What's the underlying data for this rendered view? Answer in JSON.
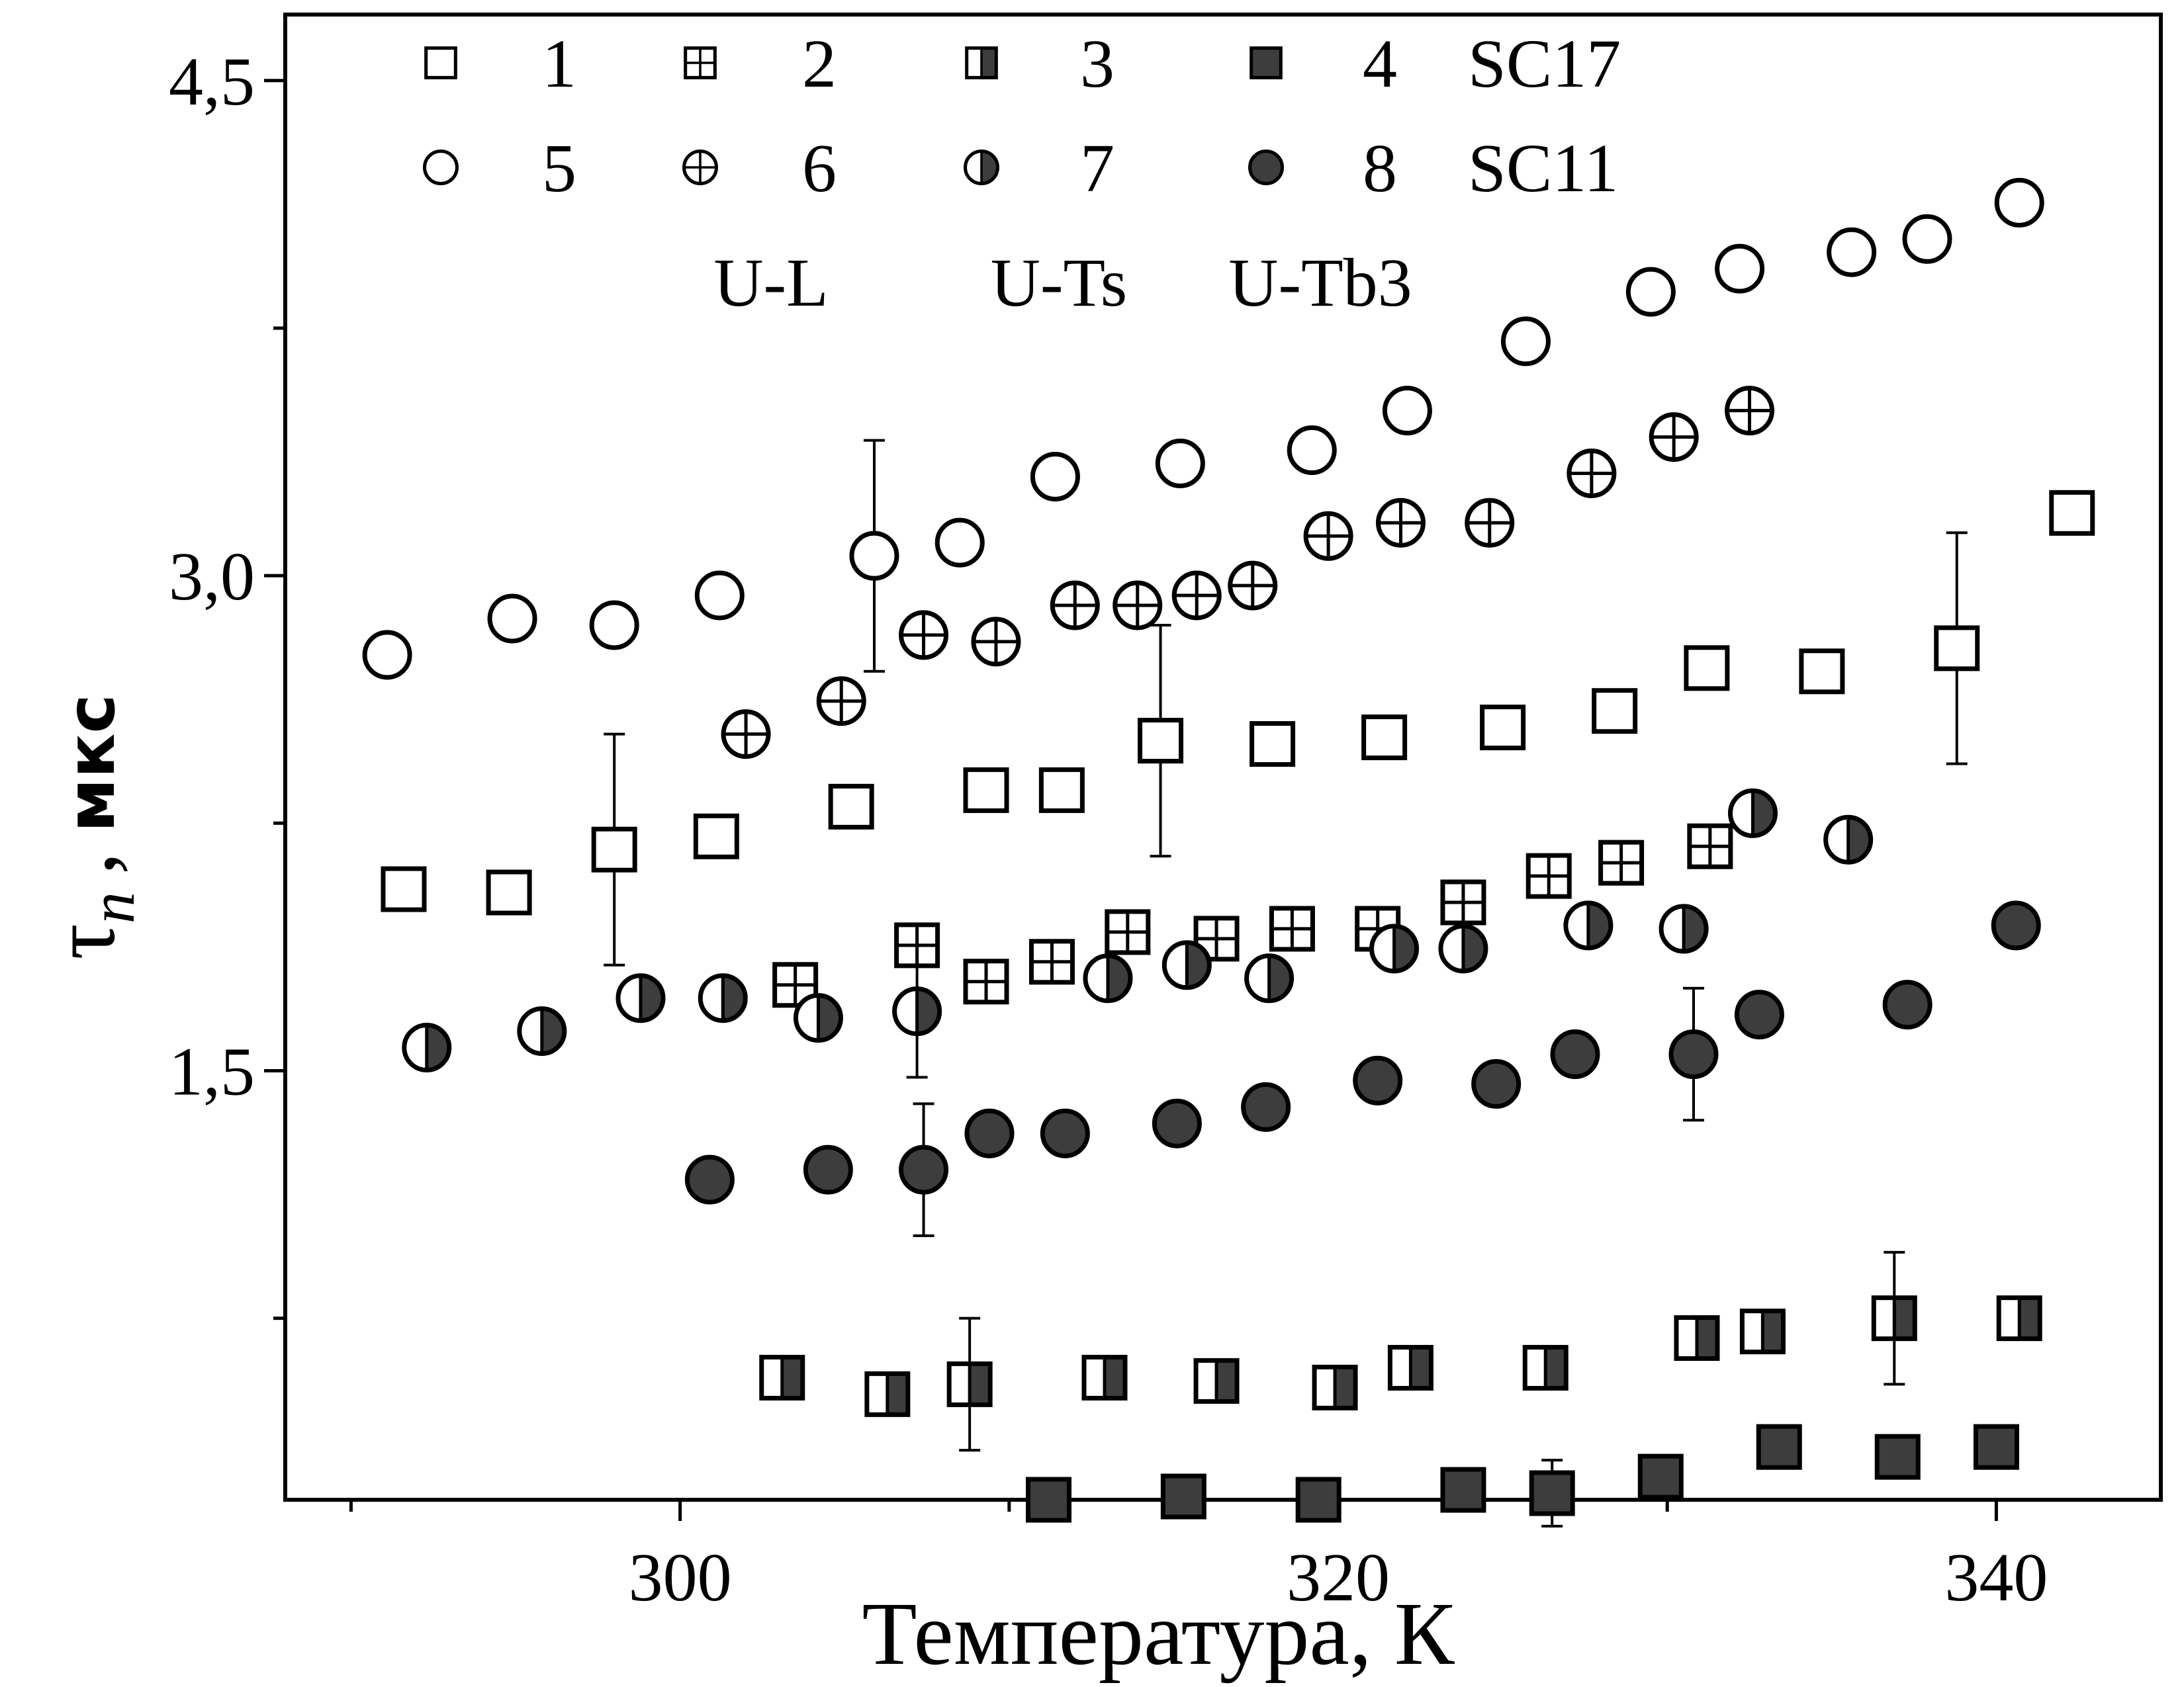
{
  "chart_data": {
    "type": "scatter",
    "xlabel": "Температура,  К",
    "ylabel": "мкс",
    "ylabel_symbol": "τ",
    "ylabel_subscript": "n",
    "ylabel_comma": ",",
    "xlim": [
      288,
      345
    ],
    "ylim": [
      0.2,
      4.7
    ],
    "xticks": [
      300,
      320,
      340
    ],
    "xtick_labels": [
      "300",
      "320",
      "340"
    ],
    "xminor": [
      290,
      310,
      330
    ],
    "yticks": [
      1.5,
      3.0,
      4.5
    ],
    "ytick_labels": [
      "1,5",
      "3,0",
      "4,5"
    ],
    "yminor": [
      0.75,
      2.25,
      3.75
    ],
    "grid": false,
    "legend": {
      "position": "top",
      "entries": [
        {
          "label": "1",
          "series": 0
        },
        {
          "label": "2",
          "series": 1
        },
        {
          "label": "3",
          "series": 2
        },
        {
          "label": "4",
          "series": 3
        },
        {
          "label": "5",
          "series": 4
        },
        {
          "label": "6",
          "series": 5
        },
        {
          "label": "7",
          "series": 6
        },
        {
          "label": "8",
          "series": 7
        }
      ],
      "row_tags": [
        "SC17",
        "SC11"
      ],
      "group_labels": [
        "U-L",
        "U-Ts",
        "U-Tb3"
      ]
    },
    "series": [
      {
        "name": "1",
        "marker": "square",
        "fill": "open",
        "x": [
          291.6,
          294.8,
          298.0,
          301.1,
          305.2,
          309.3,
          311.6,
          314.6,
          318.0,
          321.4,
          325.0,
          328.4,
          331.2,
          334.7,
          338.8,
          342.3
        ],
        "y": [
          2.05,
          2.04,
          2.17,
          2.21,
          2.3,
          2.35,
          2.35,
          2.5,
          2.49,
          2.51,
          2.54,
          2.59,
          2.72,
          2.71,
          2.78,
          3.19
        ],
        "yerr": [
          null,
          null,
          0.35,
          null,
          null,
          null,
          null,
          0.35,
          null,
          null,
          null,
          null,
          null,
          null,
          0.35,
          null
        ]
      },
      {
        "name": "2",
        "marker": "square",
        "fill": "cross",
        "x": [
          303.5,
          307.2,
          309.3,
          311.3,
          313.6,
          316.3,
          318.6,
          321.2,
          323.8,
          326.4,
          328.6,
          331.3
        ],
        "y": [
          1.76,
          1.88,
          1.77,
          1.83,
          1.92,
          1.9,
          1.93,
          1.93,
          2.01,
          2.09,
          2.13,
          2.18
        ],
        "yerr": [
          null,
          null,
          null,
          null,
          null,
          null,
          null,
          null,
          null,
          null,
          null,
          null
        ]
      },
      {
        "name": "3",
        "marker": "square",
        "fill": "right-half",
        "x": [
          303.1,
          306.3,
          308.8,
          312.9,
          316.3,
          319.9,
          322.2,
          326.3,
          330.9,
          332.9,
          336.9,
          340.7
        ],
        "y": [
          0.57,
          0.52,
          0.55,
          0.57,
          0.56,
          0.54,
          0.6,
          0.6,
          0.69,
          0.71,
          0.75,
          0.75
        ],
        "yerr": [
          null,
          null,
          0.2,
          null,
          null,
          null,
          null,
          null,
          null,
          null,
          0.2,
          null
        ]
      },
      {
        "name": "4",
        "marker": "square",
        "fill": "filled",
        "x": [
          311.2,
          315.3,
          319.4,
          323.8,
          326.5,
          329.8,
          333.4,
          337.0,
          340.0
        ],
        "y": [
          0.2,
          0.21,
          0.2,
          0.23,
          0.22,
          0.27,
          0.36,
          0.33,
          0.36
        ],
        "yerr": [
          null,
          null,
          null,
          null,
          0.1,
          null,
          null,
          null,
          null
        ]
      },
      {
        "name": "5",
        "marker": "circle",
        "fill": "open",
        "x": [
          291.1,
          294.9,
          298.0,
          301.2,
          305.9,
          308.5,
          311.4,
          315.2,
          319.2,
          322.1,
          325.7,
          329.5,
          332.2,
          335.6,
          337.9,
          340.7
        ],
        "y": [
          2.76,
          2.87,
          2.85,
          2.94,
          3.06,
          3.1,
          3.3,
          3.34,
          3.38,
          3.5,
          3.71,
          3.86,
          3.93,
          3.98,
          4.02,
          4.13
        ],
        "yerr": [
          null,
          null,
          null,
          null,
          0.35,
          null,
          null,
          null,
          null,
          null,
          null,
          null,
          null,
          null,
          null,
          null
        ]
      },
      {
        "name": "6",
        "marker": "circle",
        "fill": "cross",
        "x": [
          302.0,
          304.9,
          307.4,
          309.6,
          312.0,
          313.9,
          315.7,
          317.4,
          319.7,
          321.9,
          324.6,
          327.7,
          330.2,
          332.5
        ],
        "y": [
          2.52,
          2.62,
          2.82,
          2.8,
          2.91,
          2.91,
          2.94,
          2.97,
          3.12,
          3.16,
          3.16,
          3.31,
          3.42,
          3.5
        ],
        "yerr": [
          null,
          null,
          null,
          null,
          null,
          null,
          null,
          null,
          null,
          null,
          null,
          null,
          null,
          null
        ]
      },
      {
        "name": "7",
        "marker": "circle",
        "fill": "right-half",
        "x": [
          292.3,
          295.8,
          298.8,
          301.3,
          304.2,
          307.2,
          313.0,
          315.4,
          317.9,
          321.7,
          323.8,
          327.6,
          330.5,
          332.6,
          335.5
        ],
        "y": [
          1.57,
          1.62,
          1.72,
          1.72,
          1.66,
          1.68,
          1.78,
          1.82,
          1.78,
          1.87,
          1.87,
          1.94,
          1.93,
          2.28,
          2.2
        ],
        "yerr": [
          null,
          null,
          null,
          null,
          null,
          0.2,
          null,
          null,
          null,
          null,
          null,
          null,
          null,
          null,
          null
        ]
      },
      {
        "name": "8",
        "marker": "circle",
        "fill": "filled",
        "x": [
          300.9,
          304.5,
          307.4,
          309.4,
          311.7,
          315.1,
          317.8,
          321.2,
          324.8,
          327.2,
          330.8,
          332.8,
          337.3,
          340.6
        ],
        "y": [
          1.17,
          1.2,
          1.2,
          1.31,
          1.31,
          1.34,
          1.39,
          1.47,
          1.46,
          1.55,
          1.55,
          1.67,
          1.7,
          1.94
        ],
        "yerr": [
          null,
          null,
          0.2,
          null,
          null,
          null,
          null,
          null,
          null,
          null,
          0.2,
          null,
          null,
          null
        ]
      }
    ]
  }
}
